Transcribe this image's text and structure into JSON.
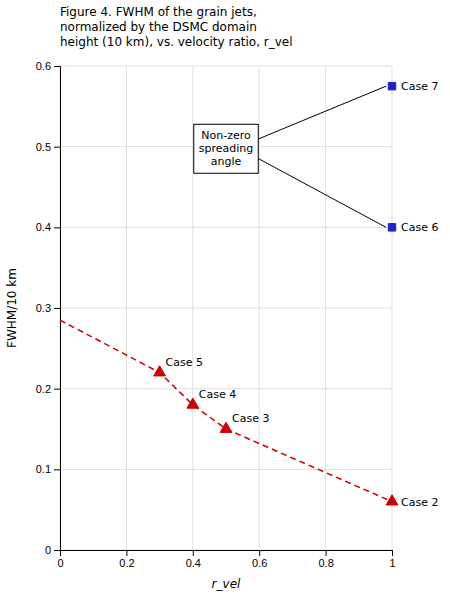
{
  "chart_data": {
    "type": "scatter",
    "title": "Figure 4. FWHM of the grain jets,\nnormalized by the DSMC domain\nheight (10 km), vs. velocity ratio, r_vel",
    "x_label": "r_vel",
    "y_label": "FWHM/10 km",
    "xlim": [
      0,
      1
    ],
    "ylim": [
      0,
      0.6
    ],
    "xticks": [
      0,
      0.2,
      0.4,
      0.6,
      0.8,
      1
    ],
    "yticks": [
      0,
      0.1,
      0.2,
      0.3,
      0.4,
      0.5,
      0.6
    ],
    "grid": true,
    "series": [
      {
        "type": "line",
        "line_style": "dashed",
        "color": "#cc0000",
        "x": [
          0,
          0.3,
          0.4,
          0.5,
          1
        ],
        "values": [
          0.285,
          0.22,
          0.18,
          0.15,
          0.06
        ]
      },
      {
        "type": "scatter",
        "marker": "triangle",
        "color": "#cc0000",
        "x": [
          0.3,
          0.4,
          0.5,
          1
        ],
        "values": [
          0.22,
          0.18,
          0.15,
          0.06
        ],
        "labels": [
          "Case 5",
          "Case 4",
          "Case 3",
          "Case 2"
        ]
      },
      {
        "type": "scatter",
        "marker": "square",
        "color": "#2222cc",
        "x": [
          1,
          1
        ],
        "values": [
          0.4,
          0.575
        ],
        "labels": [
          "Case 6",
          "Case 7"
        ]
      }
    ],
    "annotations": [
      {
        "text": "Non-zero\nspreading\nangle"
      }
    ]
  }
}
